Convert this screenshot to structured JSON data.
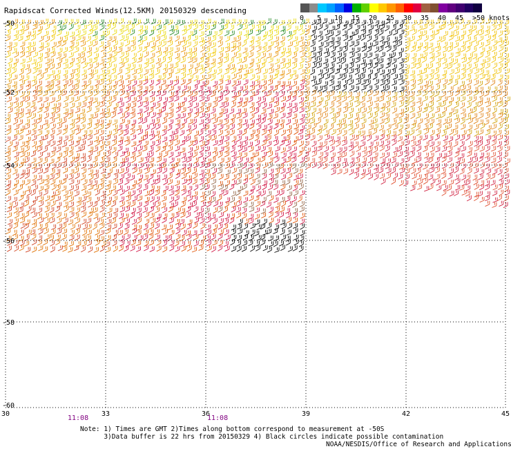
{
  "title": "Rapidscat Corrected Winds(12.5KM) 20150329 descending",
  "colorbar": {
    "colors": [
      "#555555",
      "#8c8c8c",
      "#00c8ff",
      "#00a0ff",
      "#0060ff",
      "#0000e0",
      "#00b000",
      "#60d000",
      "#ffff00",
      "#ffc800",
      "#ff9600",
      "#ff6000",
      "#ff0000",
      "#e00040",
      "#a06040",
      "#805030",
      "#8000a0",
      "#600080",
      "#400070",
      "#200060",
      "#100040"
    ],
    "labels": [
      "0",
      "5",
      "10",
      "15",
      "20",
      "25",
      "30",
      "35",
      "40",
      "45",
      ">50 knots"
    ]
  },
  "axes": {
    "lat_labels": [
      "-50",
      "-52",
      "-54",
      "-56",
      "-58",
      "-60"
    ],
    "lon_labels": [
      "30",
      "33",
      "36",
      "39",
      "42",
      "45"
    ]
  },
  "times": [
    "11:08",
    "11:08"
  ],
  "notes": {
    "line1": "Note: 1) Times are GMT 2)Times along bottom correspond to measurement at -50S",
    "line2": "3)Data buffer is 22 hrs from 20150329 4) Black circles indicate possible contamination"
  },
  "credit": "NOAA/NESDIS/Office of Research and Applications"
}
